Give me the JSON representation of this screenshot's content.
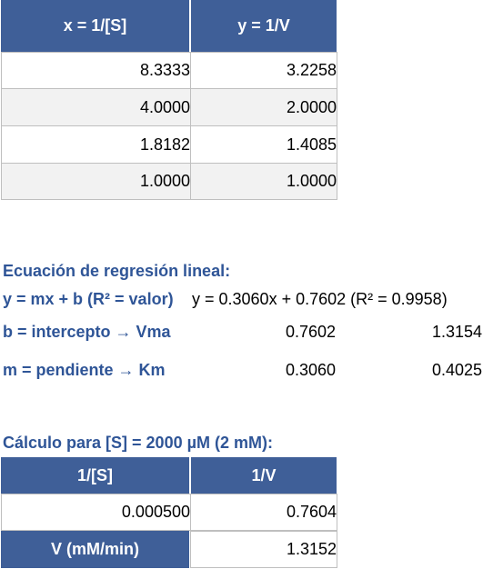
{
  "top_table": {
    "headers": [
      "x = 1/[S]",
      "y = 1/V"
    ],
    "rows": [
      [
        "8.3333",
        "3.2258"
      ],
      [
        "4.0000",
        "2.0000"
      ],
      [
        "1.8182",
        "1.4085"
      ],
      [
        "1.0000",
        "1.0000"
      ]
    ]
  },
  "regression": {
    "title": "Ecuación de regresión lineal:",
    "equation_label": "y = mx + b (R² = valor)",
    "equation_value": "y = 0.3060x + 0.7602 (R² = 0.9958)",
    "intercept_label": "b = intercepto → Vma",
    "intercept_value": "0.7602",
    "intercept_derived": "1.3154",
    "slope_label": "m = pendiente → Km",
    "slope_value": "0.3060",
    "slope_derived": "0.4025"
  },
  "calc": {
    "title": "Cálculo para [S] = 2000 µM (2 mM):",
    "headers": [
      "1/[S]",
      "1/V"
    ],
    "row1": [
      "0.000500",
      "0.7604"
    ],
    "v_label": "V (mM/min)",
    "v_value": "1.3152"
  }
}
